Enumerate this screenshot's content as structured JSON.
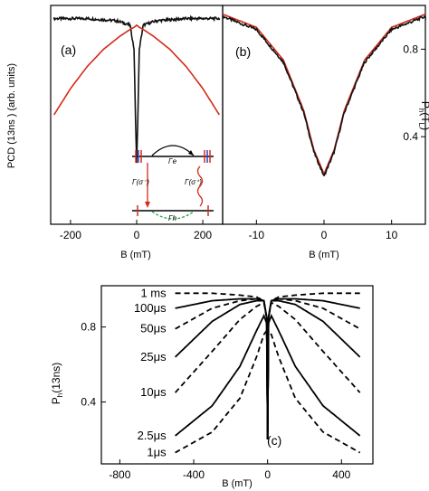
{
  "chart_data": [
    {
      "type": "line",
      "panel_label": "(a)",
      "xlabel": "B (mT)",
      "ylabel": "PCD (13ns ) (arb. units)",
      "x_ticks": [
        -200,
        0,
        200
      ],
      "xlim": [
        -260,
        260
      ],
      "ylim": [
        0,
        1
      ],
      "series": [
        {
          "color": "#111111",
          "style": "noisy-data",
          "x": [
            -250,
            -150,
            -60,
            -20,
            -8,
            -3,
            0,
            3,
            8,
            20,
            60,
            150,
            250
          ],
          "y": [
            0.94,
            0.94,
            0.93,
            0.91,
            0.8,
            0.45,
            0.28,
            0.45,
            0.8,
            0.91,
            0.93,
            0.94,
            0.94
          ]
        },
        {
          "color": "#d42a1a",
          "style": "fit",
          "x": [
            -250,
            -200,
            -150,
            -100,
            -50,
            -20,
            -8,
            0,
            8,
            20,
            50,
            100,
            150,
            200,
            250
          ],
          "y": [
            0.5,
            0.62,
            0.72,
            0.8,
            0.86,
            0.89,
            0.9,
            0.91,
            0.9,
            0.89,
            0.86,
            0.8,
            0.72,
            0.62,
            0.5
          ]
        }
      ],
      "inset": {
        "top_label": "Γe",
        "bottom_label": "Γh",
        "left_label": "Γ(σ⁻)",
        "right_label": "Γ(σ⁺)"
      }
    },
    {
      "type": "line",
      "panel_label": "(b)",
      "xlabel": "B (mT)",
      "ylabel": "P_h(T_L)",
      "x_ticks": [
        -10,
        0,
        10
      ],
      "y_ticks": [
        0.4,
        0.8
      ],
      "xlim": [
        -15,
        15
      ],
      "ylim": [
        0,
        1
      ],
      "series": [
        {
          "color": "#d42a1a",
          "style": "fit",
          "x": [
            -15,
            -10,
            -6,
            -3,
            -1.5,
            0,
            1.5,
            3,
            6,
            10,
            15
          ],
          "y": [
            0.96,
            0.9,
            0.75,
            0.52,
            0.34,
            0.23,
            0.34,
            0.52,
            0.75,
            0.9,
            0.96
          ]
        },
        {
          "color": "#111111",
          "style": "noisy-data",
          "x": [
            -15,
            -10,
            -6,
            -3,
            -1.5,
            0,
            1.5,
            3,
            6,
            10,
            15
          ],
          "y": [
            0.95,
            0.89,
            0.74,
            0.51,
            0.33,
            0.22,
            0.33,
            0.51,
            0.74,
            0.89,
            0.95
          ]
        }
      ]
    },
    {
      "type": "line",
      "panel_label": "(c)",
      "xlabel": "B (mT)",
      "ylabel": "P_h(13ns)",
      "x_ticks": [
        -800,
        -400,
        0,
        400
      ],
      "y_ticks": [
        0.4,
        0.8
      ],
      "xlim": [
        -900,
        570
      ],
      "ylim": [
        0.07,
        1.02
      ],
      "series": [
        {
          "name": "1 ms",
          "dash": true,
          "x": [
            -500,
            -300,
            -150,
            -60,
            -20,
            -5,
            0,
            5,
            20,
            60,
            150,
            300,
            500
          ],
          "y": [
            0.98,
            0.98,
            0.97,
            0.96,
            0.94,
            0.85,
            0.2,
            0.85,
            0.94,
            0.96,
            0.97,
            0.98,
            0.98
          ]
        },
        {
          "name": "100μs",
          "dash": false,
          "x": [
            -500,
            -300,
            -150,
            -60,
            -20,
            -5,
            0,
            5,
            20,
            60,
            150,
            300,
            500
          ],
          "y": [
            0.9,
            0.94,
            0.95,
            0.95,
            0.94,
            0.85,
            0.2,
            0.85,
            0.94,
            0.95,
            0.95,
            0.94,
            0.9
          ]
        },
        {
          "name": "50μs",
          "dash": true,
          "x": [
            -500,
            -300,
            -150,
            -60,
            -20,
            -5,
            0,
            5,
            20,
            60,
            150,
            300,
            500
          ],
          "y": [
            0.79,
            0.9,
            0.94,
            0.95,
            0.94,
            0.85,
            0.2,
            0.85,
            0.94,
            0.95,
            0.94,
            0.9,
            0.79
          ]
        },
        {
          "name": "25μs",
          "dash": false,
          "x": [
            -500,
            -300,
            -150,
            -60,
            -20,
            -5,
            0,
            5,
            20,
            60,
            150,
            300,
            500
          ],
          "y": [
            0.64,
            0.83,
            0.92,
            0.94,
            0.94,
            0.85,
            0.2,
            0.85,
            0.94,
            0.94,
            0.92,
            0.83,
            0.64
          ]
        },
        {
          "name": "10μs",
          "dash": true,
          "x": [
            -500,
            -300,
            -150,
            -60,
            -20,
            -5,
            0,
            5,
            20,
            60,
            150,
            300,
            500
          ],
          "y": [
            0.45,
            0.67,
            0.84,
            0.91,
            0.93,
            0.85,
            0.2,
            0.85,
            0.93,
            0.91,
            0.84,
            0.67,
            0.45
          ]
        },
        {
          "name": "2.5μs",
          "dash": false,
          "x": [
            -500,
            -300,
            -150,
            -60,
            -20,
            -5,
            0,
            5,
            20,
            60,
            150,
            300,
            500
          ],
          "y": [
            0.22,
            0.38,
            0.59,
            0.78,
            0.86,
            0.82,
            0.2,
            0.82,
            0.86,
            0.78,
            0.59,
            0.38,
            0.22
          ]
        },
        {
          "name": "1μs",
          "dash": true,
          "x": [
            -500,
            -300,
            -150,
            -60,
            -20,
            -5,
            0,
            5,
            20,
            60,
            150,
            300,
            500
          ],
          "y": [
            0.13,
            0.24,
            0.42,
            0.64,
            0.76,
            0.78,
            0.2,
            0.78,
            0.76,
            0.64,
            0.42,
            0.24,
            0.13
          ]
        }
      ]
    }
  ]
}
